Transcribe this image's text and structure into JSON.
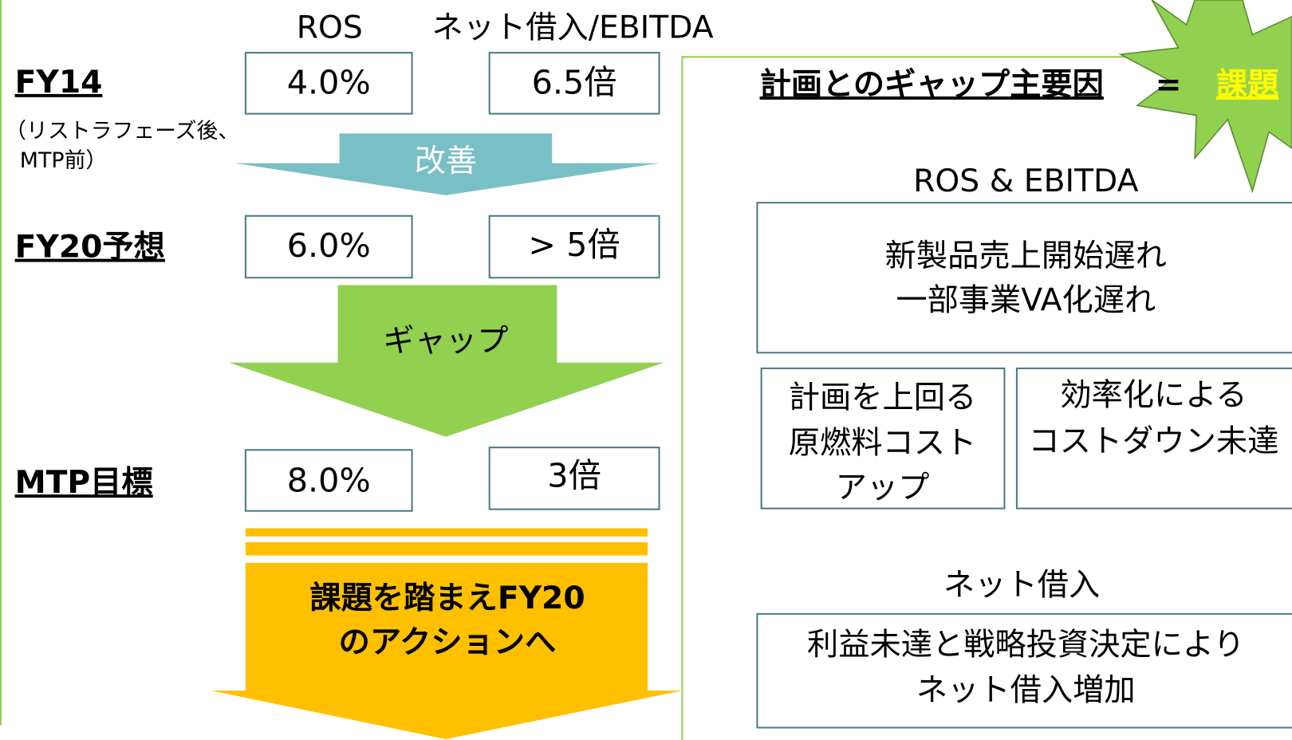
{
  "header": {
    "ros": "ROS",
    "net_debt": "ネット借入/EBITDA"
  },
  "rows": [
    {
      "label": "FY14",
      "note": [
        "（リストラフェーズ後、",
        "MTP前）"
      ],
      "ros": "4.0%",
      "net_debt": "6.5倍"
    },
    {
      "label": "FY20予想",
      "ros": "6.0%",
      "net_debt": "> 5倍"
    },
    {
      "label": "MTP目標",
      "ros": "8.0%",
      "net_debt": "3倍"
    }
  ],
  "arrows": {
    "improve": "改善",
    "gap": "ギャップ",
    "action": [
      "課題を踏まえFY20",
      "のアクションへ"
    ]
  },
  "panel": {
    "title": "計画とのギャップ主要因",
    "equals": "=",
    "issue": "課題",
    "ros_heading": "ROS & EBITDA",
    "ros_box": [
      "新製品売上開始遅れ",
      "一部事業VA化遅れ"
    ],
    "cost_box": [
      "計画を上回る",
      "原燃料コスト",
      "アップ"
    ],
    "efficiency_box": [
      "効率化による",
      "コストダウン未達"
    ],
    "debt_heading": "ネット借入",
    "debt_box": [
      "利益未達と戦略投資決定により",
      "ネット借入増加"
    ]
  }
}
